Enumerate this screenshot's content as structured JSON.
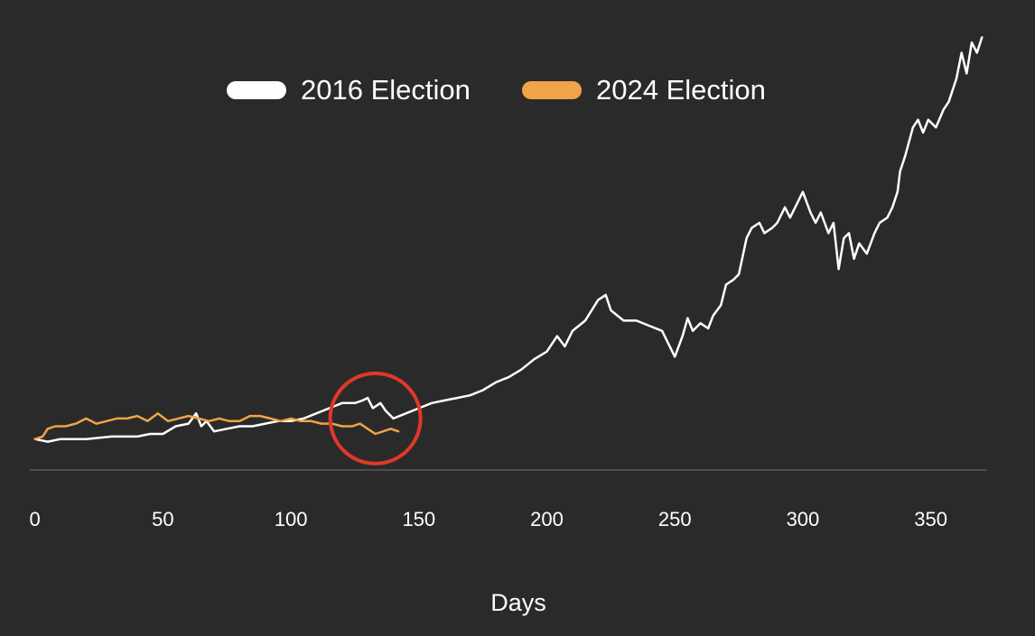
{
  "chart_data": {
    "type": "line",
    "title": "",
    "xlabel": "Days",
    "ylabel": "",
    "xlim": [
      -2,
      372
    ],
    "ylim": [
      -12,
      160
    ],
    "xticks": [
      0,
      50,
      100,
      150,
      200,
      250,
      300,
      350
    ],
    "grid": false,
    "legend_position": "top-center",
    "series": [
      {
        "name": "2016 Election",
        "color": "#ffffff",
        "x": [
          0,
          5,
          10,
          20,
          30,
          40,
          45,
          50,
          55,
          60,
          63,
          65,
          67,
          70,
          75,
          80,
          85,
          90,
          95,
          100,
          105,
          110,
          115,
          120,
          125,
          128,
          130,
          132,
          135,
          137,
          140,
          145,
          150,
          155,
          160,
          165,
          170,
          175,
          180,
          185,
          190,
          195,
          200,
          204,
          207,
          210,
          215,
          220,
          223,
          225,
          230,
          235,
          240,
          245,
          250,
          253,
          255,
          257,
          260,
          263,
          265,
          268,
          270,
          273,
          275,
          278,
          280,
          283,
          285,
          288,
          290,
          293,
          295,
          298,
          300,
          303,
          305,
          307,
          310,
          312,
          314,
          316,
          318,
          320,
          322,
          325,
          328,
          330,
          333,
          335,
          337,
          338,
          340,
          343,
          345,
          347,
          349,
          352,
          355,
          357,
          360,
          362,
          364,
          366,
          368,
          370
        ],
        "values": [
          0,
          -1,
          0,
          0,
          1,
          1,
          2,
          2,
          5,
          6,
          10,
          5,
          7,
          3,
          4,
          5,
          5,
          6,
          7,
          7,
          8,
          10,
          12,
          14,
          14,
          15,
          16,
          12,
          14,
          11,
          8,
          10,
          12,
          14,
          15,
          16,
          17,
          19,
          22,
          24,
          27,
          31,
          34,
          40,
          36,
          42,
          46,
          54,
          56,
          50,
          46,
          46,
          44,
          42,
          32,
          40,
          47,
          42,
          45,
          43,
          48,
          52,
          60,
          62,
          64,
          78,
          82,
          84,
          80,
          82,
          84,
          90,
          86,
          92,
          96,
          88,
          84,
          88,
          80,
          84,
          66,
          78,
          80,
          70,
          76,
          72,
          80,
          84,
          86,
          90,
          96,
          104,
          110,
          121,
          124,
          119,
          124,
          121,
          128,
          131,
          140,
          150,
          142,
          154,
          150,
          156
        ]
      },
      {
        "name": "2024 Election",
        "color": "#f0a448",
        "x": [
          0,
          3,
          5,
          8,
          12,
          16,
          20,
          24,
          28,
          32,
          36,
          40,
          44,
          48,
          52,
          56,
          60,
          64,
          68,
          72,
          76,
          80,
          84,
          88,
          92,
          96,
          100,
          104,
          108,
          112,
          116,
          120,
          124,
          127,
          130,
          133,
          136,
          139,
          142
        ],
        "values": [
          0,
          1,
          4,
          5,
          5,
          6,
          8,
          6,
          7,
          8,
          8,
          9,
          7,
          10,
          7,
          8,
          9,
          8,
          7,
          8,
          7,
          7,
          9,
          9,
          8,
          7,
          8,
          7,
          7,
          6,
          6,
          5,
          5,
          6,
          4,
          2,
          3,
          4,
          3
        ]
      }
    ],
    "annotations": [
      {
        "type": "circle",
        "color": "#e0382a",
        "center": [
          133,
          8
        ]
      }
    ]
  }
}
